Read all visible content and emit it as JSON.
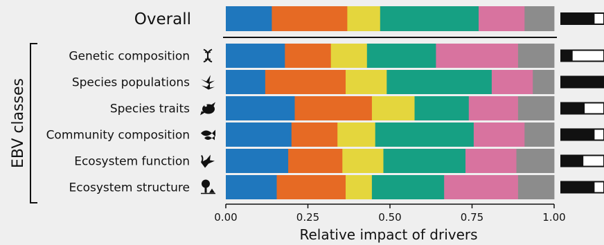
{
  "chart_data": {
    "type": "bar",
    "orientation": "horizontal",
    "stacked": "100%",
    "overall": {
      "label": "Overall",
      "values": [
        0.14,
        0.23,
        0.1,
        0.3,
        0.14,
        0.09
      ],
      "indicator": 0.78
    },
    "categories": [
      "Genetic composition",
      "Species populations",
      "Species traits",
      "Community composition",
      "Ecosystem function",
      "Ecosystem structure"
    ],
    "rows": [
      {
        "values": [
          0.18,
          0.14,
          0.11,
          0.21,
          0.25,
          0.11
        ],
        "icon": "dna-icon",
        "indicator": 0.27
      },
      {
        "values": [
          0.12,
          0.245,
          0.125,
          0.32,
          0.125,
          0.065
        ],
        "icon": "birds-icon",
        "indicator": 1.0
      },
      {
        "values": [
          0.21,
          0.235,
          0.13,
          0.165,
          0.15,
          0.11
        ],
        "icon": "frog-icon",
        "indicator": 0.55
      },
      {
        "values": [
          0.2,
          0.14,
          0.115,
          0.3,
          0.155,
          0.09
        ],
        "icon": "fish-group-icon",
        "indicator": 0.78
      },
      {
        "values": [
          0.19,
          0.165,
          0.125,
          0.25,
          0.155,
          0.115
        ],
        "icon": "bird-plant-icon",
        "indicator": 0.52
      },
      {
        "values": [
          0.155,
          0.21,
          0.08,
          0.22,
          0.225,
          0.11
        ],
        "icon": "tree-icon",
        "indicator": 0.78
      }
    ],
    "colors": [
      "#1f77bd",
      "#e66a24",
      "#e4d63d",
      "#16a083",
      "#d8739f",
      "#8c8c8c"
    ],
    "xlim": [
      0,
      1
    ],
    "ticks": [
      "0.00",
      "0.25",
      "0.50",
      "0.75",
      "1.00"
    ],
    "xlabel": "Relative impact of drivers",
    "ylabel": "EBV classes"
  }
}
